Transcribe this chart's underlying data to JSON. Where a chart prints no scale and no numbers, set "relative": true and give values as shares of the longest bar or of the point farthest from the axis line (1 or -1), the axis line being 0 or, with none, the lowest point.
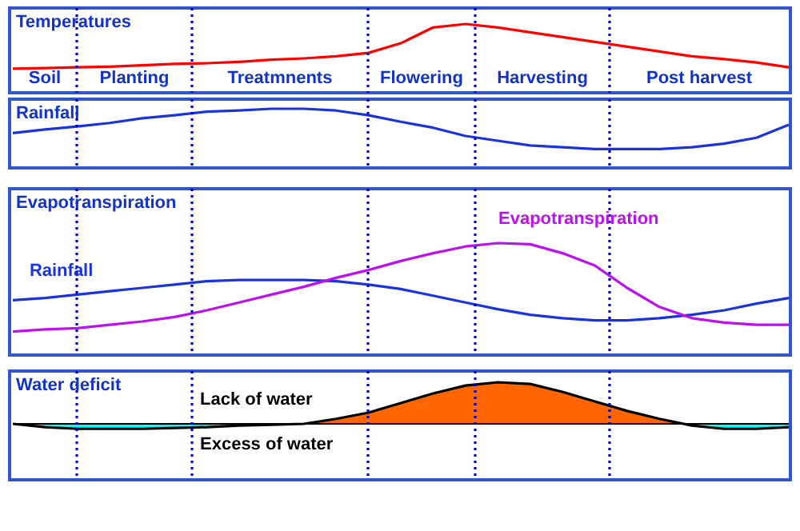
{
  "chart_data": [
    {
      "type": "line",
      "title": "Temperatures",
      "relative": true,
      "legend": false,
      "categories": [
        null,
        null,
        null,
        null,
        null,
        null,
        null,
        null,
        null,
        null,
        null,
        null,
        null,
        null,
        null,
        null,
        null,
        null,
        null,
        null,
        null,
        null,
        null,
        null,
        null
      ],
      "series": [
        {
          "color": "#ff0000",
          "values": [
            0.35,
            0.36,
            0.37,
            0.38,
            0.4,
            0.42,
            0.43,
            0.45,
            0.48,
            0.5,
            0.53,
            0.58,
            0.72,
            0.95,
            1,
            0.95,
            0.88,
            0.81,
            0.74,
            0.67,
            0.6,
            0.53,
            0.49,
            0.44,
            0.37
          ]
        }
      ],
      "annotations": [
        "Soil",
        "Planting",
        "Treatmnents",
        "Flowering",
        "Harvesting",
        "Post harvest"
      ]
    },
    {
      "type": "line",
      "title": "Rainfall",
      "relative": true,
      "legend": false,
      "categories": [
        null,
        null,
        null,
        null,
        null,
        null,
        null,
        null,
        null,
        null,
        null,
        null,
        null,
        null,
        null,
        null,
        null,
        null,
        null,
        null,
        null,
        null,
        null,
        null,
        null
      ],
      "series": [
        {
          "color": "#1a33dd",
          "values": [
            0.59,
            0.65,
            0.7,
            0.76,
            0.84,
            0.89,
            0.95,
            0.97,
            1,
            1,
            0.97,
            0.89,
            0.78,
            0.68,
            0.54,
            0.46,
            0.38,
            0.35,
            0.32,
            0.32,
            0.32,
            0.35,
            0.41,
            0.51,
            0.73
          ]
        }
      ]
    },
    {
      "type": "line",
      "title": "Evapotranspiration",
      "relative": true,
      "legend": false,
      "categories": [
        null,
        null,
        null,
        null,
        null,
        null,
        null,
        null,
        null,
        null,
        null,
        null,
        null,
        null,
        null,
        null,
        null,
        null,
        null,
        null,
        null,
        null,
        null,
        null,
        null
      ],
      "series": [
        {
          "name": "Rainfall",
          "color": "#1a33dd",
          "values": [
            0.49,
            0.51,
            0.54,
            0.57,
            0.6,
            0.63,
            0.66,
            0.67,
            0.67,
            0.67,
            0.66,
            0.63,
            0.59,
            0.53,
            0.47,
            0.41,
            0.36,
            0.33,
            0.31,
            0.31,
            0.33,
            0.36,
            0.4,
            0.46,
            0.51
          ]
        },
        {
          "name": "Evapotranspiration",
          "color": "#bb11ee",
          "values": [
            0.21,
            0.23,
            0.24,
            0.27,
            0.3,
            0.34,
            0.4,
            0.47,
            0.54,
            0.61,
            0.69,
            0.76,
            0.84,
            0.91,
            0.97,
            1,
            0.99,
            0.91,
            0.8,
            0.6,
            0.43,
            0.33,
            0.29,
            0.27,
            0.27
          ]
        }
      ]
    },
    {
      "type": "area",
      "title": "Water deficit",
      "relative": true,
      "legend": false,
      "categories": [
        null,
        null,
        null,
        null,
        null,
        null,
        null,
        null,
        null,
        null,
        null,
        null,
        null,
        null,
        null,
        null,
        null,
        null,
        null,
        null,
        null,
        null,
        null,
        null,
        null
      ],
      "series": [
        {
          "color": "#ff6600",
          "values": [
            0,
            -0.08,
            -0.12,
            -0.12,
            -0.12,
            -0.1,
            -0.08,
            -0.04,
            -0.02,
            0,
            0.12,
            0.27,
            0.5,
            0.73,
            0.92,
            1,
            0.96,
            0.77,
            0.54,
            0.31,
            0.12,
            -0.04,
            -0.12,
            -0.12,
            -0.08
          ]
        }
      ],
      "annotations": [
        "Lack of water",
        "Excess of water"
      ]
    }
  ]
}
